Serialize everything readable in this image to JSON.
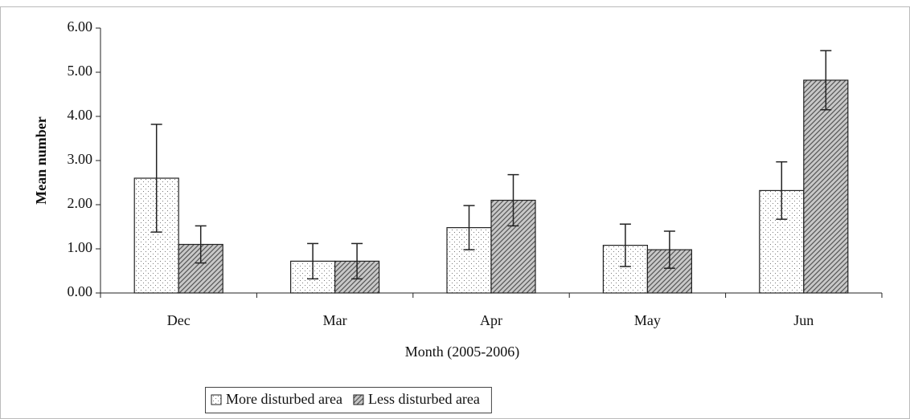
{
  "chart_data": {
    "type": "bar",
    "x_label": "Month (2005-2006)",
    "y_label": "Mean number",
    "categories": [
      "Dec",
      "Mar",
      "Apr",
      "May",
      "Jun"
    ],
    "series": [
      {
        "name": "More disturbed area",
        "color": "#ffffff",
        "pattern": "dots",
        "values": [
          2.6,
          0.72,
          1.48,
          1.08,
          2.32
        ],
        "errors": [
          1.22,
          0.4,
          0.5,
          0.48,
          0.65
        ]
      },
      {
        "name": "Less disturbed area",
        "color": "#c8c8c8",
        "pattern": "hatch",
        "values": [
          1.1,
          0.72,
          2.1,
          0.98,
          4.82
        ],
        "errors": [
          0.42,
          0.4,
          0.58,
          0.42,
          0.67
        ]
      }
    ],
    "ylim": [
      0,
      6
    ],
    "yticks": [
      {
        "value": 0,
        "label": "0.00"
      },
      {
        "value": 1,
        "label": "1.00"
      },
      {
        "value": 2,
        "label": "2.00"
      },
      {
        "value": 3,
        "label": "3.00"
      },
      {
        "value": 4,
        "label": "4.00"
      },
      {
        "value": 5,
        "label": "5.00"
      },
      {
        "value": 6,
        "label": "6.00"
      }
    ],
    "grid": false,
    "legend": "bottom"
  }
}
